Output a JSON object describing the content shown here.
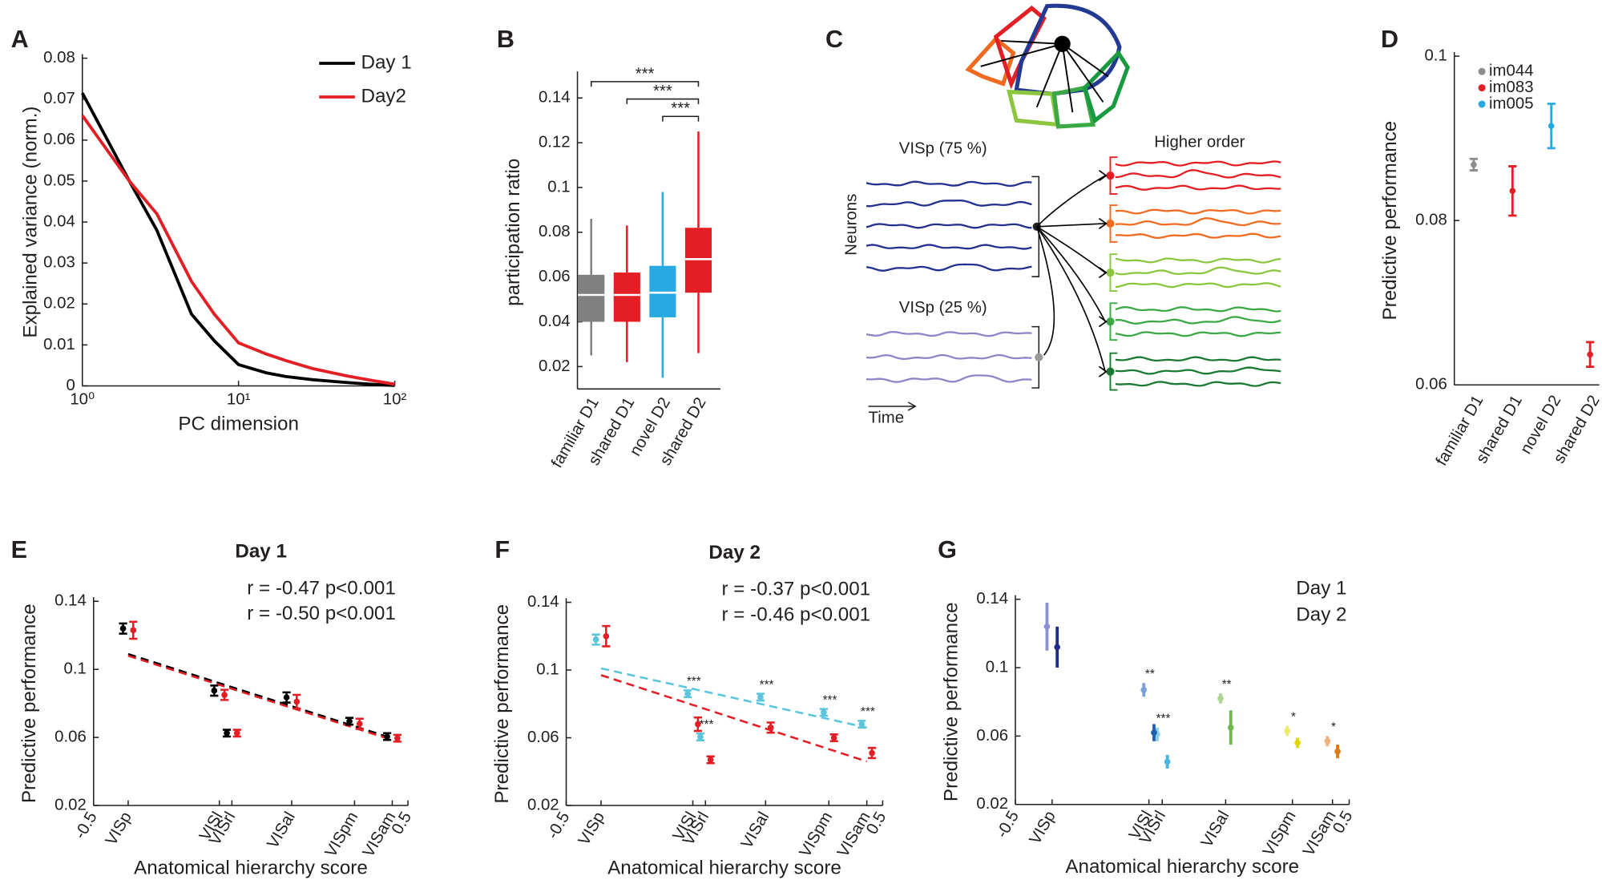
{
  "chart_data": [
    {
      "panel": "A",
      "type": "line",
      "xlabel": "PC dimension",
      "ylabel": "Explained variance (norm.)",
      "x": [
        1,
        2,
        3,
        5,
        7,
        10,
        15,
        20,
        30,
        50,
        70,
        100
      ],
      "log_x": true,
      "xlim": [
        1,
        100
      ],
      "xticks": [
        {
          "value": 1,
          "label": "10⁰"
        },
        {
          "value": 10,
          "label": "10¹"
        },
        {
          "value": 100,
          "label": "10²"
        }
      ],
      "ylim": [
        0,
        0.08
      ],
      "yticks": [
        0,
        0.01,
        0.02,
        0.03,
        0.04,
        0.05,
        0.06,
        0.07,
        0.08
      ],
      "legend": "upper right",
      "series": [
        {
          "name": "Day 1",
          "color": "#000000",
          "values": [
            0.0715,
            0.05,
            0.038,
            0.0175,
            0.011,
            0.0052,
            0.0032,
            0.0023,
            0.0015,
            0.0008,
            0.0004,
            0.0001
          ]
        },
        {
          "name": "Day2",
          "color": "#e31e24",
          "values": [
            0.066,
            0.05,
            0.042,
            0.0255,
            0.0175,
            0.0105,
            0.0078,
            0.0062,
            0.0042,
            0.0024,
            0.0014,
            0.0004
          ]
        }
      ]
    },
    {
      "panel": "B",
      "type": "box",
      "ylabel": "participation ratio",
      "categories": [
        "familiar D1",
        "shared D1",
        "novel D2",
        "shared D2"
      ],
      "colors": [
        "#808080",
        "#e31e24",
        "#27aae1",
        "#e31e24"
      ],
      "whisker_low": [
        0.025,
        0.022,
        0.015,
        0.026
      ],
      "q1": [
        0.04,
        0.04,
        0.042,
        0.053
      ],
      "median": [
        0.052,
        0.052,
        0.053,
        0.068
      ],
      "q3": [
        0.061,
        0.062,
        0.065,
        0.082
      ],
      "whisker_high": [
        0.086,
        0.083,
        0.098,
        0.125
      ],
      "ylim": [
        0.01,
        0.15
      ],
      "yticks": [
        0.02,
        0.04,
        0.06,
        0.08,
        0.1,
        0.12,
        0.14
      ],
      "annotations": [
        "***",
        "***",
        "***"
      ]
    },
    {
      "panel": "D",
      "type": "errorbar",
      "ylabel": "Predictive performance",
      "categories": [
        "familiar D1",
        "shared D1",
        "novel D2",
        "shared D2"
      ],
      "ylim": [
        0.06,
        0.1
      ],
      "yticks": [
        0.06,
        0.08,
        0.1
      ],
      "legend": "upper left",
      "series": [
        {
          "name": "im044",
          "color": "#8c8c8c",
          "values": [
            0.0868,
            null,
            null,
            null
          ],
          "errors": [
            0.0007,
            null,
            null,
            null
          ]
        },
        {
          "name": "im083",
          "color": "#e31e24",
          "values": [
            null,
            0.0836,
            null,
            0.0637
          ],
          "errors": [
            null,
            0.003,
            null,
            0.0015
          ]
        },
        {
          "name": "im005",
          "color": "#27aae1",
          "values": [
            null,
            null,
            0.0915,
            null
          ],
          "errors": [
            null,
            null,
            0.0027,
            null
          ]
        }
      ]
    },
    {
      "panel": "E",
      "type": "scatter_errorbar",
      "title": "Day 1",
      "xlabel": "Anatomical hierarchy score",
      "ylabel": "Predictive performance",
      "xlim": [
        -0.5,
        0.5
      ],
      "xticks": [
        -0.5,
        0.5
      ],
      "area_ticks": [
        {
          "value": -0.39,
          "label": "VISp"
        },
        {
          "value": -0.1,
          "label": "VISl"
        },
        {
          "value": -0.06,
          "label": "VISrl"
        },
        {
          "value": 0.13,
          "label": "VISal"
        },
        {
          "value": 0.33,
          "label": "VISpm"
        },
        {
          "value": 0.45,
          "label": "VISam"
        }
      ],
      "x": [
        -0.39,
        -0.1,
        -0.06,
        0.13,
        0.33,
        0.45
      ],
      "ylim": [
        0.02,
        0.14
      ],
      "yticks": [
        0.02,
        0.06,
        0.1,
        0.14
      ],
      "series": [
        {
          "color": "#000000",
          "values": [
            0.124,
            0.0875,
            0.0625,
            0.0835,
            0.0695,
            0.0605
          ],
          "errors": [
            0.003,
            0.003,
            0.002,
            0.003,
            0.002,
            0.002
          ]
        },
        {
          "color": "#e31e24",
          "values": [
            0.123,
            0.085,
            0.0625,
            0.081,
            0.068,
            0.0595
          ],
          "errors": [
            0.005,
            0.003,
            0.002,
            0.004,
            0.003,
            0.002
          ]
        }
      ],
      "fits": [
        {
          "color": "#000000",
          "x": [
            -0.39,
            0.45
          ],
          "y": [
            0.109,
            0.0595
          ]
        },
        {
          "color": "#e31e24",
          "x": [
            -0.39,
            0.45
          ],
          "y": [
            0.108,
            0.0585
          ]
        }
      ],
      "annotations": [
        {
          "text": "r = -0.47 p<0.001",
          "color": "#8c8c8c"
        },
        {
          "text": "r = -0.50 p<0.001",
          "color": "#e31e24"
        }
      ]
    },
    {
      "panel": "F",
      "type": "scatter_errorbar",
      "title": "Day 2",
      "xlabel": "Anatomical hierarchy score",
      "ylabel": "Predictive performance",
      "xlim": [
        -0.5,
        0.5
      ],
      "xticks": [
        -0.5,
        0.5
      ],
      "area_ticks": [
        {
          "value": -0.39,
          "label": "VISp"
        },
        {
          "value": -0.1,
          "label": "VISl"
        },
        {
          "value": -0.06,
          "label": "VISrl"
        },
        {
          "value": 0.13,
          "label": "VISal"
        },
        {
          "value": 0.33,
          "label": "VISpm"
        },
        {
          "value": 0.45,
          "label": "VISam"
        }
      ],
      "x": [
        -0.39,
        -0.1,
        -0.06,
        0.13,
        0.33,
        0.45
      ],
      "ylim": [
        0.02,
        0.14
      ],
      "yticks": [
        0.02,
        0.06,
        0.1,
        0.14
      ],
      "series": [
        {
          "color": "#5bc5dc",
          "values": [
            0.118,
            0.086,
            0.0605,
            0.084,
            0.075,
            0.068
          ],
          "errors": [
            0.003,
            0.002,
            0.002,
            0.002,
            0.002,
            0.002
          ],
          "stars": [
            null,
            "***",
            "***",
            "***",
            "***",
            "***"
          ]
        },
        {
          "color": "#e31e24",
          "values": [
            0.12,
            0.068,
            0.047,
            0.066,
            0.06,
            0.051
          ],
          "errors": [
            0.006,
            0.004,
            0.002,
            0.003,
            0.002,
            0.003
          ]
        }
      ],
      "fits": [
        {
          "color": "#5bc5dc",
          "x": [
            -0.39,
            0.45
          ],
          "y": [
            0.101,
            0.066
          ]
        },
        {
          "color": "#e31e24",
          "x": [
            -0.39,
            0.45
          ],
          "y": [
            0.097,
            0.046
          ]
        }
      ],
      "annotations": [
        {
          "text": "r = -0.37 p<0.001",
          "color": "#27aae1"
        },
        {
          "text": "r = -0.46 p<0.001",
          "color": "#e31e24"
        }
      ]
    },
    {
      "panel": "G",
      "type": "scatter_errorbar",
      "xlabel": "Anatomical hierarchy score",
      "ylabel": "Predictive performance",
      "xlim": [
        -0.5,
        0.5
      ],
      "xticks": [
        -0.5,
        0.5
      ],
      "area_ticks": [
        {
          "value": -0.39,
          "label": "VISp"
        },
        {
          "value": -0.1,
          "label": "VISl"
        },
        {
          "value": -0.06,
          "label": "VISrl"
        },
        {
          "value": 0.13,
          "label": "VISal"
        },
        {
          "value": 0.33,
          "label": "VISpm"
        },
        {
          "value": 0.45,
          "label": "VISam"
        }
      ],
      "x": [
        -0.39,
        -0.1,
        -0.06,
        0.13,
        0.33,
        0.45
      ],
      "ylim": [
        0.02,
        0.14
      ],
      "yticks": [
        0.02,
        0.06,
        0.1,
        0.14
      ],
      "legend": "upper right",
      "series": [
        {
          "name": "Day 1",
          "legend_color": "#9b9b9b",
          "colors": [
            "#8e8ed6",
            "#7ba0d6",
            "#88cfe8",
            "#a8d890",
            "#f0ea6a",
            "#f4b07a"
          ],
          "values": [
            0.124,
            0.087,
            0.061,
            0.082,
            0.063,
            0.057
          ],
          "errors": [
            0.014,
            0.004,
            0.004,
            0.003,
            0.003,
            0.003
          ],
          "stars": [
            null,
            "**",
            "***",
            "**",
            "*",
            "*"
          ]
        },
        {
          "name": "Day 2",
          "legend_color": "#000000",
          "colors": [
            "#1f2c8a",
            "#1f5fb0",
            "#4ab4e0",
            "#6fb84e",
            "#e6d400",
            "#e07a10"
          ],
          "values": [
            0.112,
            0.062,
            0.045,
            0.065,
            0.056,
            0.051
          ],
          "errors": [
            0.012,
            0.005,
            0.004,
            0.01,
            0.003,
            0.004
          ]
        }
      ]
    }
  ],
  "diagram": {
    "panel": "C",
    "primary_label": "VISp (75 %)",
    "secondary_label": "VISp (25 %)",
    "target_label": "Higher order",
    "neurons_label": "Neurons",
    "time_label": "Time"
  }
}
